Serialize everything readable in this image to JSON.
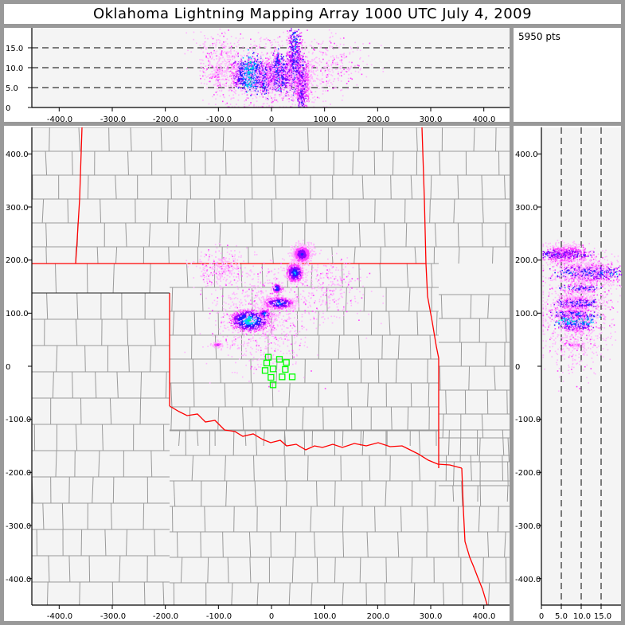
{
  "title": "Oklahoma Lightning Mapping Array   1000 UTC  July 4, 2009",
  "stats": {
    "point_count": "5950 pts"
  },
  "colors": {
    "frame": "#999999",
    "plot_background": "#f4f4f4",
    "county_lines": "#9a9a9a",
    "state_borders": "#ff0000",
    "stations": "#00ff00",
    "density_scale": [
      "#ffb4ff",
      "#ff40ff",
      "#9000ff",
      "#2020ff",
      "#00c8ff",
      "#00ff80"
    ]
  },
  "chart_data": [
    {
      "type": "scatter",
      "panel": "altitude-vs-east-west",
      "xlim": [
        -450,
        450
      ],
      "ylim": [
        0,
        20
      ],
      "x_ticks": [
        "-400.0",
        "-300.0",
        "-200.0",
        "-100.0",
        "0",
        "100.0",
        "200.0",
        "300.0",
        "400.0"
      ],
      "y_ticks": [
        "0",
        "5.0",
        "10.0",
        "15.0"
      ],
      "dashed_gridlines_y": [
        5,
        10,
        15
      ]
    },
    {
      "type": "scatter",
      "panel": "plan-view-map",
      "xlim": [
        -450,
        450
      ],
      "ylim": [
        -450,
        450
      ],
      "x_ticks": [
        "-400.0",
        "-300.0",
        "-200.0",
        "-100.0",
        "0",
        "100.0",
        "200.0",
        "300.0",
        "400.0"
      ],
      "y_ticks": [
        "400.0",
        "300.0",
        "200.0",
        "100.0",
        "0",
        "-100.0",
        "-200.0",
        "-300.0",
        "-400.0"
      ],
      "stations": [
        [
          -6,
          17
        ],
        [
          15,
          13
        ],
        [
          28,
          7
        ],
        [
          -9,
          6
        ],
        [
          -12,
          -8
        ],
        [
          3,
          -5
        ],
        [
          26,
          -6
        ],
        [
          -1,
          -21
        ],
        [
          20,
          -20
        ],
        [
          39,
          -20
        ],
        [
          3,
          -35
        ]
      ],
      "source_clusters": [
        {
          "x": -42,
          "y": 87,
          "sx": 14,
          "sy": 8,
          "alt": 8.5,
          "salt": 1.6,
          "n": 1800,
          "peak": 5
        },
        {
          "x": 13,
          "y": 120,
          "sx": 13,
          "sy": 5,
          "alt": 8.5,
          "salt": 1.8,
          "n": 900,
          "peak": 4
        },
        {
          "x": -14,
          "y": 100,
          "sx": 5,
          "sy": 4,
          "alt": 7.5,
          "salt": 2,
          "n": 200,
          "peak": 4
        },
        {
          "x": 9,
          "y": 148,
          "sx": 4,
          "sy": 4,
          "alt": 10,
          "salt": 2,
          "n": 150,
          "peak": 4
        },
        {
          "x": 43,
          "y": 177,
          "sx": 7,
          "sy": 8,
          "alt": 12,
          "salt": 4,
          "n": 650,
          "peak": 4
        },
        {
          "x": 56,
          "y": 212,
          "sx": 9,
          "sy": 9,
          "alt": 6,
          "salt": 2.5,
          "n": 650,
          "peak": 3
        },
        {
          "x": -103,
          "y": 42,
          "sx": 6,
          "sy": 3,
          "alt": 8,
          "salt": 1.2,
          "n": 60,
          "peak": 2
        },
        {
          "x": -95,
          "y": 185,
          "sx": 25,
          "sy": 18,
          "alt": 12,
          "salt": 4,
          "n": 300,
          "peak": 1
        },
        {
          "x": 110,
          "y": 150,
          "sx": 30,
          "sy": 30,
          "alt": 11,
          "salt": 4,
          "n": 290,
          "peak": 1
        },
        {
          "x": -15,
          "y": 95,
          "sx": 45,
          "sy": 45,
          "alt": 8,
          "salt": 4,
          "n": 950,
          "peak": 1
        }
      ]
    },
    {
      "type": "scatter",
      "panel": "north-south-vs-altitude",
      "xlim": [
        0,
        20
      ],
      "ylim": [
        -450,
        450
      ],
      "x_ticks": [
        "0",
        "5.0",
        "10.0",
        "15.0"
      ],
      "y_ticks": [
        "400.0",
        "300.0",
        "200.0",
        "100.0",
        "0",
        "-100.0",
        "-200.0",
        "-300.0",
        "-400.0"
      ],
      "dashed_gridlines_x": [
        5,
        10,
        15
      ]
    }
  ]
}
